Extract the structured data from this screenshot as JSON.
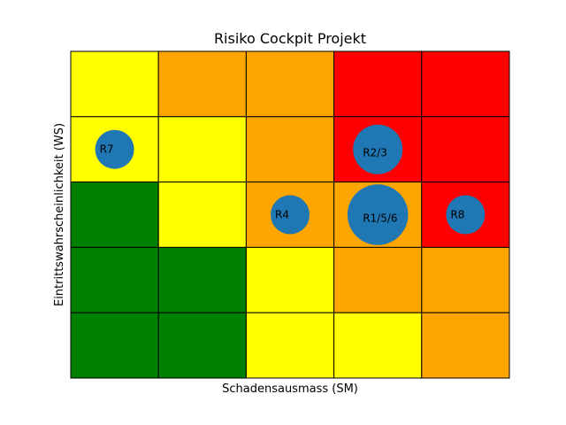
{
  "chart_data": {
    "type": "heatmap",
    "title": "Risiko Cockpit Projekt",
    "xlabel": "Schadensausmass (SM)",
    "ylabel": "Eintrittswahrscheinlichkeit (WS)",
    "grid_columns": 5,
    "grid_rows": 5,
    "grid": true,
    "ticks_shown": false,
    "colors": {
      "green": "#008000",
      "yellow": "#ffff00",
      "orange": "#ffa500",
      "red": "#ff0000",
      "bubble": "#1f77b4",
      "gridline": "#000000"
    },
    "cells_top_to_bottom": [
      [
        "yellow",
        "orange",
        "orange",
        "red",
        "red"
      ],
      [
        "yellow",
        "yellow",
        "orange",
        "red",
        "red"
      ],
      [
        "green",
        "yellow",
        "orange",
        "orange",
        "red"
      ],
      [
        "green",
        "green",
        "yellow",
        "orange",
        "orange"
      ],
      [
        "green",
        "green",
        "yellow",
        "yellow",
        "orange"
      ]
    ],
    "bubbles": [
      {
        "label": "R7",
        "sm": 1,
        "ws": 4,
        "weight": 1
      },
      {
        "label": "R2/3",
        "sm": 4,
        "ws": 4,
        "weight": 2
      },
      {
        "label": "R4",
        "sm": 3,
        "ws": 3,
        "weight": 1
      },
      {
        "label": "R1/5/6",
        "sm": 4,
        "ws": 3,
        "weight": 3
      },
      {
        "label": "R8",
        "sm": 5,
        "ws": 3,
        "weight": 1
      }
    ]
  }
}
